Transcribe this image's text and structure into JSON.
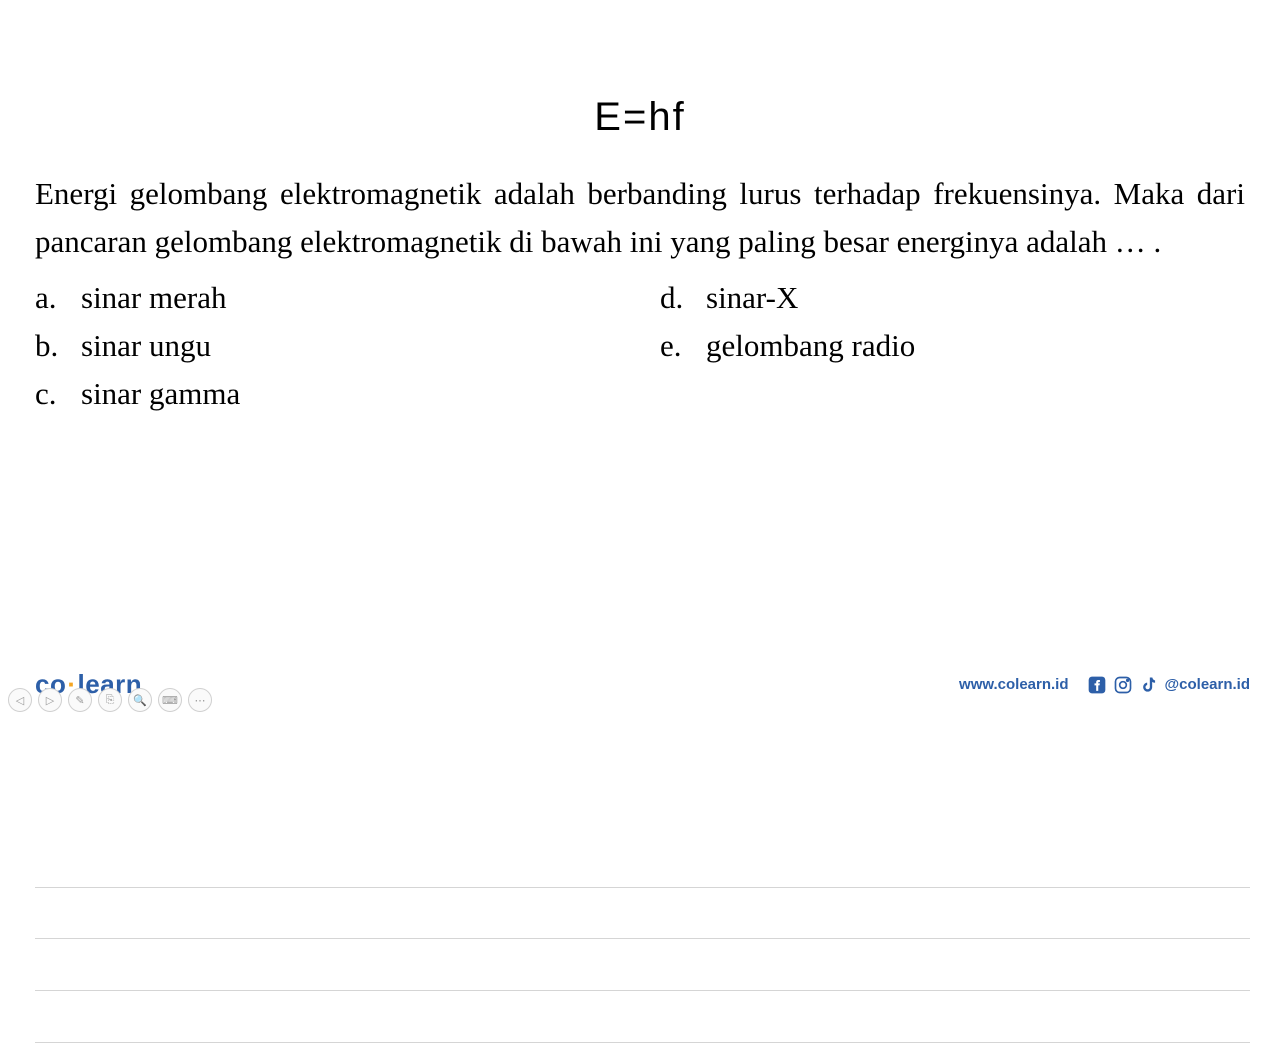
{
  "equation": "E=hf",
  "question": "Energi gelombang elektromagnetik adalah berbanding lurus terhadap frekuensinya. Maka dari pancaran gelombang elektromagnetik di bawah ini yang paling besar energinya adalah … .",
  "options": {
    "left": [
      {
        "label": "a.",
        "text": "sinar merah"
      },
      {
        "label": "b.",
        "text": "sinar ungu"
      },
      {
        "label": "c.",
        "text": "sinar gamma"
      }
    ],
    "right": [
      {
        "label": "d.",
        "text": "sinar-X"
      },
      {
        "label": "e.",
        "text": "gelombang radio"
      }
    ]
  },
  "hr_positions": [
    469,
    520,
    572,
    624
  ],
  "hr_color": "#d5d5d5",
  "logo": {
    "part1": "co",
    "part2": "learn"
  },
  "website": "www.colearn.id",
  "handle": "@colearn.id",
  "colors": {
    "brand": "#2d5fa8",
    "accent": "#f5a623",
    "text": "#000000",
    "background": "#ffffff"
  },
  "typography": {
    "question_fontsize": 31,
    "equation_fontsize": 40,
    "logo_fontsize": 26,
    "footer_fontsize": 15
  },
  "nav_icons": [
    "◁",
    "▷",
    "✎",
    "⎘",
    "🔍",
    "⌨",
    "⋯"
  ]
}
